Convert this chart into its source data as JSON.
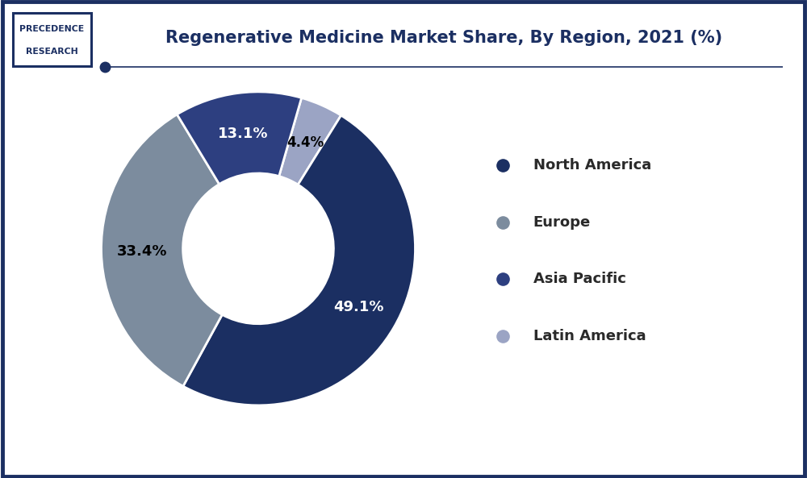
{
  "title": "Regenerative Medicine Market Share, By Region, 2021 (%)",
  "labels": [
    "North America",
    "Europe",
    "Asia Pacific",
    "Latin America"
  ],
  "values": [
    49.1,
    33.4,
    13.1,
    4.4
  ],
  "colors": [
    "#1b2f62",
    "#7c8c9e",
    "#2d3f80",
    "#9ba4c4"
  ],
  "pct_labels": [
    "49.1%",
    "33.4%",
    "13.1%",
    "4.4%"
  ],
  "pct_label_colors": [
    "white",
    "black",
    "white",
    "black"
  ],
  "background_color": "#ffffff",
  "border_color": "#1b2f62",
  "title_color": "#1b2f62",
  "title_fontsize": 15,
  "donut_width": 0.52,
  "logo_box_color": "#1b2f62",
  "logo_text1": "PRECEDENCE",
  "logo_text2": "RESEARCH",
  "start_angle": 74,
  "legend_fontsize": 13
}
